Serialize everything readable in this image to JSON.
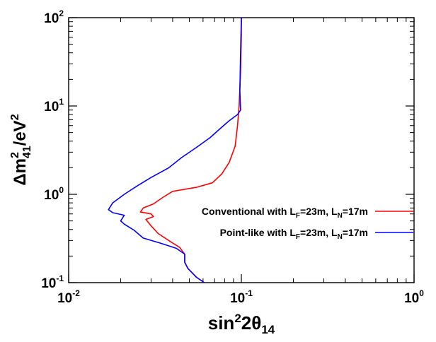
{
  "chart_data": {
    "type": "line",
    "xscale": "log",
    "yscale": "log",
    "xlim": [
      0.01,
      1
    ],
    "ylim": [
      0.1,
      100
    ],
    "grid": false,
    "legend_position": "right-center",
    "xlabel": {
      "base": "sin",
      "sup": "2",
      "mid": "2θ",
      "sub": "14"
    },
    "ylabel": {
      "pre": "Δm",
      "sup": "2",
      "sub": "41",
      "post": "/eV",
      "post_sup": "2"
    },
    "xticks": [
      {
        "value": 0.01,
        "base": "10",
        "exp": "-2"
      },
      {
        "value": 0.1,
        "base": "10",
        "exp": "-1"
      },
      {
        "value": 1,
        "base": "10",
        "exp": "0"
      }
    ],
    "yticks": [
      {
        "value": 0.1,
        "base": "10",
        "exp": "-1"
      },
      {
        "value": 1,
        "base": "10",
        "exp": "0"
      },
      {
        "value": 10,
        "base": "10",
        "exp": "1"
      },
      {
        "value": 100,
        "base": "10",
        "exp": "2"
      }
    ],
    "series": [
      {
        "name": "Conventional with L_F=23m, L_N=17m",
        "legend": {
          "a": "Conventional with L",
          "b": "F",
          "c": "=23m, L",
          "d": "N",
          "e": "=17m"
        },
        "color": "#ff0000",
        "points": [
          [
            0.061,
            0.1
          ],
          [
            0.055,
            0.115
          ],
          [
            0.049,
            0.145
          ],
          [
            0.047,
            0.17
          ],
          [
            0.047,
            0.21
          ],
          [
            0.044,
            0.25
          ],
          [
            0.038,
            0.3
          ],
          [
            0.033,
            0.36
          ],
          [
            0.03,
            0.44
          ],
          [
            0.028,
            0.52
          ],
          [
            0.031,
            0.56
          ],
          [
            0.03,
            0.6
          ],
          [
            0.026,
            0.63
          ],
          [
            0.027,
            0.7
          ],
          [
            0.031,
            0.78
          ],
          [
            0.035,
            0.92
          ],
          [
            0.04,
            1.08
          ],
          [
            0.055,
            1.2
          ],
          [
            0.068,
            1.35
          ],
          [
            0.077,
            1.7
          ],
          [
            0.085,
            2.3
          ],
          [
            0.092,
            3.5
          ],
          [
            0.095,
            6
          ],
          [
            0.097,
            10
          ],
          [
            0.099,
            25
          ],
          [
            0.1,
            60
          ],
          [
            0.1,
            100
          ]
        ]
      },
      {
        "name": "Point-like with L_F=23m, L_N=17m",
        "legend": {
          "a": "Point-like with L",
          "b": "F",
          "c": "=23m, L",
          "d": "N",
          "e": "=17m"
        },
        "color": "#0000ff",
        "points": [
          [
            0.061,
            0.1
          ],
          [
            0.055,
            0.115
          ],
          [
            0.049,
            0.145
          ],
          [
            0.047,
            0.17
          ],
          [
            0.047,
            0.21
          ],
          [
            0.042,
            0.245
          ],
          [
            0.034,
            0.28
          ],
          [
            0.027,
            0.32
          ],
          [
            0.024,
            0.39
          ],
          [
            0.021,
            0.46
          ],
          [
            0.02,
            0.5
          ],
          [
            0.021,
            0.58
          ],
          [
            0.018,
            0.62
          ],
          [
            0.017,
            0.67
          ],
          [
            0.018,
            0.8
          ],
          [
            0.021,
            1.0
          ],
          [
            0.025,
            1.25
          ],
          [
            0.03,
            1.55
          ],
          [
            0.038,
            2.0
          ],
          [
            0.045,
            2.6
          ],
          [
            0.055,
            3.4
          ],
          [
            0.066,
            4.4
          ],
          [
            0.075,
            5.5
          ],
          [
            0.085,
            6.8
          ],
          [
            0.095,
            8
          ],
          [
            0.099,
            9
          ],
          [
            0.098,
            15
          ],
          [
            0.099,
            40
          ],
          [
            0.1,
            100
          ]
        ]
      }
    ]
  }
}
